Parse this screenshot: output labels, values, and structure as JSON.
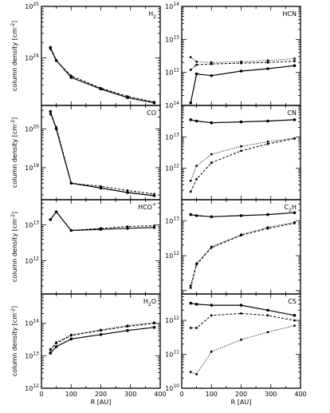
{
  "chart_data": [
    {
      "type": "line",
      "species": "H",
      "species_sub": "2",
      "species_sup": "",
      "ylabel": "column density",
      "ylabel_unit": "[cm",
      "ylabel_unit_exp": "-2",
      "ylabel_unit_close": "]",
      "yscale": "log",
      "xlim": [
        0,
        400
      ],
      "ylim": [
        1.2e+23,
        1e+25
      ],
      "yticks": [
        {
          "base": "10",
          "exp": "24",
          "value": 1e+24
        },
        {
          "base": "10",
          "exp": "25",
          "value": 1e+25
        }
      ],
      "series": [
        {
          "x": [
            30,
            50,
            100,
            200,
            290,
            380
          ],
          "y": [
            1.6e+24,
            9e+23,
            4.2e+23,
            2.5e+23,
            1.7e+23,
            1.35e+23
          ]
        },
        {
          "x": [
            30,
            50,
            100,
            200,
            290,
            380
          ],
          "y": [
            1.5e+24,
            8.8e+23,
            4.5e+23,
            2.6e+23,
            1.8e+23,
            1.4e+23
          ]
        }
      ]
    },
    {
      "type": "line",
      "species": "HCN",
      "species_sub": "",
      "species_sup": "",
      "ylabel": "",
      "yscale": "log",
      "xlim": [
        0,
        400
      ],
      "ylim": [
        100000000000.0,
        100000000000000.0
      ],
      "yticks": [
        {
          "base": "10",
          "exp": "12",
          "value": 1000000000000.0
        },
        {
          "base": "10",
          "exp": "13",
          "value": 10000000000000.0
        },
        {
          "base": "10",
          "exp": "14",
          "value": 100000000000000.0
        }
      ],
      "series": [
        {
          "x": [
            30,
            50,
            100,
            200,
            290,
            380
          ],
          "y": [
            120000000000.0,
            900000000000.0,
            800000000000.0,
            1100000000000.0,
            1300000000000.0,
            1600000000000.0
          ]
        },
        {
          "x": [
            30,
            50,
            100,
            200,
            290,
            380
          ],
          "y": [
            1200000000000.0,
            1700000000000.0,
            1800000000000.0,
            1900000000000.0,
            2000000000000.0,
            2200000000000.0
          ]
        },
        {
          "x": [
            30,
            50,
            100,
            200,
            290,
            380
          ],
          "y": [
            2900000000000.0,
            2100000000000.0,
            2000000000000.0,
            2100000000000.0,
            2300000000000.0,
            2600000000000.0
          ]
        }
      ]
    },
    {
      "type": "line",
      "species": "CO",
      "species_sub": "",
      "species_sup": "",
      "ylabel": "column density",
      "ylabel_unit": "[cm",
      "ylabel_unit_exp": "-2",
      "ylabel_unit_close": "]",
      "yscale": "log",
      "xlim": [
        0,
        400
      ],
      "ylim": [
        1.5e+18,
        4e+20
      ],
      "yticks": [
        {
          "base": "10",
          "exp": "19",
          "value": 1e+19
        },
        {
          "base": "10",
          "exp": "20",
          "value": 1e+20
        }
      ],
      "series": [
        {
          "x": [
            30,
            50,
            100,
            200,
            290,
            380
          ],
          "y": [
            2.8e+20,
            1e+20,
            4e+18,
            3e+18,
            2.3e+18,
            1.9e+18
          ]
        },
        {
          "x": [
            30,
            50,
            100,
            200,
            290,
            380
          ],
          "y": [
            2.4e+20,
            1.1e+20,
            4e+18,
            3.3e+18,
            2.6e+18,
            2.1e+18
          ]
        }
      ]
    },
    {
      "type": "line",
      "species": "CN",
      "species_sub": "",
      "species_sup": "",
      "ylabel": "",
      "yscale": "log",
      "xlim": [
        0,
        400
      ],
      "ylim": [
        100000000000.0,
        100000000000000.0
      ],
      "yticks": [
        {
          "base": "10",
          "exp": "12",
          "value": 1000000000000.0
        },
        {
          "base": "10",
          "exp": "13",
          "value": 10000000000000.0
        },
        {
          "base": "10",
          "exp": "14",
          "value": 100000000000000.0
        }
      ],
      "series": [
        {
          "x": [
            30,
            50,
            100,
            200,
            290,
            380
          ],
          "y": [
            35000000000000.0,
            32000000000000.0,
            28000000000000.0,
            30000000000000.0,
            32000000000000.0,
            35000000000000.0
          ]
        },
        {
          "x": [
            30,
            50,
            100,
            200,
            290,
            380
          ],
          "y": [
            180000000000.0,
            450000000000.0,
            1500000000000.0,
            3600000000000.0,
            6000000000000.0,
            8800000000000.0
          ]
        },
        {
          "x": [
            30,
            50,
            100,
            200,
            290,
            380
          ],
          "y": [
            400000000000.0,
            1200000000000.0,
            2800000000000.0,
            5000000000000.0,
            7000000000000.0,
            9000000000000.0
          ]
        }
      ]
    },
    {
      "type": "line",
      "species": "HCO",
      "species_sub": "",
      "species_sup": "+",
      "ylabel": "column density",
      "ylabel_unit": "[cm",
      "ylabel_unit_exp": "-2",
      "ylabel_unit_close": "]",
      "yscale": "log",
      "xlim": [
        0,
        400
      ],
      "ylim": [
        120000000000.0,
        50000000000000.0
      ],
      "yticks": [
        {
          "base": "10",
          "exp": "12",
          "value": 1000000000000.0
        },
        {
          "base": "10",
          "exp": "13",
          "value": 10000000000000.0
        }
      ],
      "series": [
        {
          "x": [
            30,
            50,
            100,
            200,
            290,
            380
          ],
          "y": [
            14000000000000.0,
            23000000000000.0,
            7000000000000.0,
            7500000000000.0,
            8000000000000.0,
            8500000000000.0
          ]
        },
        {
          "x": [
            30,
            50,
            100,
            200,
            290,
            380
          ],
          "y": [
            14000000000000.0,
            23000000000000.0,
            7000000000000.0,
            8000000000000.0,
            9000000000000.0,
            9500000000000.0
          ]
        }
      ]
    },
    {
      "type": "line",
      "species": "C",
      "species_sub": "2",
      "species_sup": "",
      "species_suffix": "H",
      "ylabel": "",
      "yscale": "log",
      "xlim": [
        0,
        400
      ],
      "ylim": [
        80000000000.0,
        40000000000000.0
      ],
      "yticks": [
        {
          "base": "10",
          "exp": "12",
          "value": 1000000000000.0
        },
        {
          "base": "10",
          "exp": "13",
          "value": 10000000000000.0
        }
      ],
      "series": [
        {
          "x": [
            30,
            50,
            100,
            200,
            290,
            380
          ],
          "y": [
            15000000000000.0,
            14000000000000.0,
            13000000000000.0,
            14000000000000.0,
            15000000000000.0,
            17000000000000.0
          ]
        },
        {
          "x": [
            30,
            50,
            100,
            200,
            290,
            380
          ],
          "y": [
            120000000000.0,
            550000000000.0,
            1700000000000.0,
            3800000000000.0,
            6000000000000.0,
            8500000000000.0
          ]
        },
        {
          "x": [
            30,
            50,
            100,
            200,
            290,
            380
          ],
          "y": [
            140000000000.0,
            600000000000.0,
            1800000000000.0,
            4000000000000.0,
            6500000000000.0,
            9000000000000.0
          ]
        }
      ]
    },
    {
      "type": "line",
      "species": "H",
      "species_sub": "2",
      "species_sup": "",
      "species_suffix": "O",
      "ylabel": "column density",
      "ylabel_unit": "[cm",
      "ylabel_unit_exp": "-2",
      "ylabel_unit_close": "]",
      "xlabel": "R [AU]",
      "yscale": "log",
      "xlim": [
        0,
        400
      ],
      "ylim": [
        1000000000000.0,
        800000000000000.0
      ],
      "xticks": [
        0,
        100,
        200,
        300,
        400
      ],
      "yticks": [
        {
          "base": "10",
          "exp": "12",
          "value": 1000000000000.0
        },
        {
          "base": "10",
          "exp": "13",
          "value": 10000000000000.0
        },
        {
          "base": "10",
          "exp": "14",
          "value": 100000000000000.0
        }
      ],
      "series": [
        {
          "x": [
            30,
            50,
            100,
            200,
            290,
            380
          ],
          "y": [
            12000000000000.0,
            19000000000000.0,
            33000000000000.0,
            45000000000000.0,
            60000000000000.0,
            75000000000000.0
          ]
        },
        {
          "x": [
            30,
            50,
            100,
            200,
            290,
            380
          ],
          "y": [
            15000000000000.0,
            24000000000000.0,
            42000000000000.0,
            60000000000000.0,
            80000000000000.0,
            100000000000000.0
          ]
        },
        {
          "x": [
            30,
            50,
            100,
            200,
            290,
            380
          ],
          "y": [
            16000000000000.0,
            26000000000000.0,
            44000000000000.0,
            63000000000000.0,
            85000000000000.0,
            105000000000000.0
          ]
        }
      ]
    },
    {
      "type": "line",
      "species": "CS",
      "species_sub": "",
      "species_sup": "",
      "ylabel": "",
      "xlabel": "R [AU]",
      "yscale": "log",
      "xlim": [
        0,
        400
      ],
      "ylim": [
        10000000000.0,
        6000000000000.0
      ],
      "xticks": [
        0,
        100,
        200,
        300,
        400
      ],
      "yticks": [
        {
          "base": "10",
          "exp": "10",
          "value": 10000000000.0
        },
        {
          "base": "10",
          "exp": "11",
          "value": 100000000000.0
        },
        {
          "base": "10",
          "exp": "12",
          "value": 1000000000000.0
        }
      ],
      "series": [
        {
          "x": [
            30,
            50,
            100,
            200,
            290,
            380
          ],
          "y": [
            3200000000000.0,
            3000000000000.0,
            2800000000000.0,
            2800000000000.0,
            2000000000000.0,
            1400000000000.0
          ]
        },
        {
          "x": [
            30,
            50,
            100,
            200,
            290,
            380
          ],
          "y": [
            600000000000.0,
            600000000000.0,
            1400000000000.0,
            1600000000000.0,
            1400000000000.0,
            1000000000000.0
          ]
        },
        {
          "x": [
            30,
            50,
            100,
            200,
            290,
            380
          ],
          "y": [
            30000000000.0,
            26000000000.0,
            120000000000.0,
            270000000000.0,
            450000000000.0,
            700000000000.0
          ]
        }
      ]
    }
  ]
}
